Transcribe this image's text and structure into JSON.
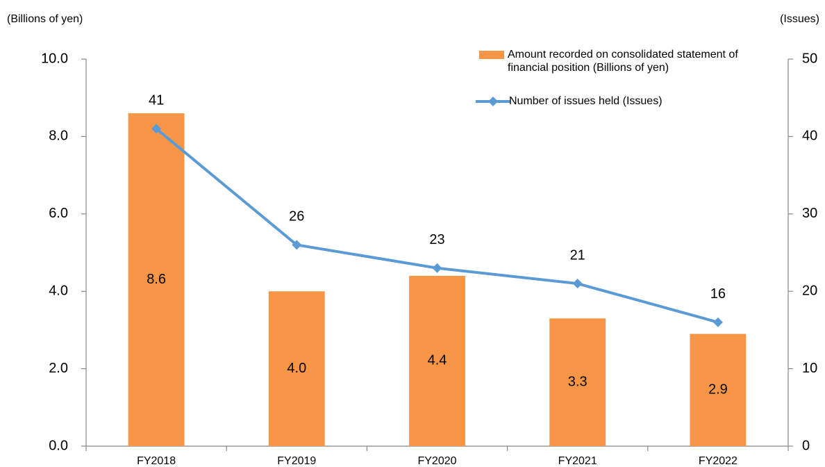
{
  "chart_data": {
    "type": "bar_line",
    "y_label": "(Billions of yen)",
    "y2_label": "(Issues)",
    "categories": [
      "FY2018",
      "FY2019",
      "FY2020",
      "FY2021",
      "FY2022"
    ],
    "series": [
      {
        "name": "Amount recorded on consolidated statement of financial position (Billions of yen)",
        "type": "bar",
        "color": "#f79646",
        "values": [
          8.6,
          4.0,
          4.4,
          3.3,
          2.9
        ],
        "value_labels": [
          "8.6",
          "4.0",
          "4.4",
          "3.3",
          "2.9"
        ]
      },
      {
        "name": "Number of issues held (Issues)",
        "type": "line",
        "axis": "y2",
        "color": "#5b9bd5",
        "values": [
          41,
          26,
          23,
          21,
          16
        ]
      }
    ],
    "ylim": [
      0,
      10
    ],
    "yticks": [
      {
        "value": 0,
        "label": "0.0"
      },
      {
        "value": 2,
        "label": "2.0"
      },
      {
        "value": 4,
        "label": "4.0"
      },
      {
        "value": 6,
        "label": "6.0"
      },
      {
        "value": 8,
        "label": "8.0"
      },
      {
        "value": 10,
        "label": "10.0"
      }
    ],
    "y2lim": [
      0,
      50
    ],
    "y2ticks": [
      0,
      10,
      20,
      30,
      40,
      50
    ],
    "grid": false
  }
}
